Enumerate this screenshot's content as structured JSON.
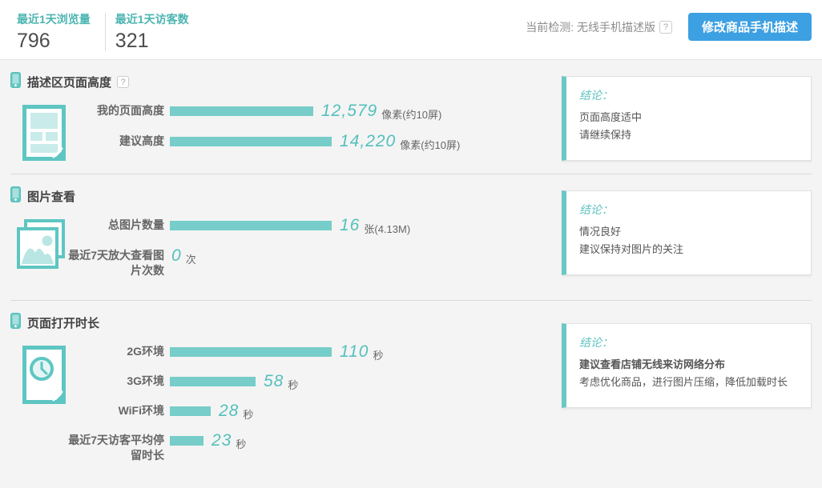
{
  "header": {
    "stats": [
      {
        "label": "最近1天浏览量",
        "value": "796"
      },
      {
        "label": "最近1天访客数",
        "value": "321"
      }
    ],
    "current_check": "当前检测: 无线手机描述版",
    "help_badge": "?",
    "action_button": "修改商品手机描述"
  },
  "sections": [
    {
      "title": "描述区页面高度",
      "bar_max": 14220,
      "rows": [
        {
          "label": "我的页面高度",
          "value": 12579,
          "value_display": "12,579",
          "unit": "像素(约10屏)",
          "has_bar": true
        },
        {
          "label": "建议高度",
          "value": 14220,
          "value_display": "14,220",
          "unit": "像素(约10屏)",
          "has_bar": true
        }
      ],
      "conclusion": {
        "title": "结论：",
        "lines": [
          "页面高度适中",
          "请继续保持"
        ]
      }
    },
    {
      "title": "图片查看",
      "bar_max": 16,
      "rows": [
        {
          "label": "总图片数量",
          "value": 16,
          "value_display": "16",
          "unit": "张(4.13M)",
          "has_bar": true
        },
        {
          "label": "最近7天放大查看图片次数",
          "value": 0,
          "value_display": "0",
          "unit": "次",
          "has_bar": false
        }
      ],
      "conclusion": {
        "title": "结论：",
        "lines": [
          "情况良好",
          "建议保持对图片的关注"
        ]
      }
    },
    {
      "title": "页面打开时长",
      "bar_max": 110,
      "rows": [
        {
          "label": "2G环境",
          "value": 110,
          "value_display": "110",
          "unit": "秒",
          "has_bar": true
        },
        {
          "label": "3G环境",
          "value": 58,
          "value_display": "58",
          "unit": "秒",
          "has_bar": true
        },
        {
          "label": "WiFi环境",
          "value": 28,
          "value_display": "28",
          "unit": "秒",
          "has_bar": true
        },
        {
          "label": "最近7天访客平均停留时长",
          "value": 23,
          "value_display": "23",
          "unit": "秒",
          "has_bar": true
        }
      ],
      "conclusion": {
        "title": "结论：",
        "lines": [
          "建议查看店铺无线来访网络分布",
          "考虑优化商品，进行图片压缩，降低加载时长"
        ]
      }
    }
  ],
  "chart_data": [
    {
      "type": "bar",
      "title": "描述区页面高度",
      "categories": [
        "我的页面高度",
        "建议高度"
      ],
      "values": [
        12579,
        14220
      ],
      "unit": "像素",
      "xlim": [
        0,
        14220
      ]
    },
    {
      "type": "bar",
      "title": "图片查看",
      "categories": [
        "总图片数量",
        "最近7天放大查看图片次数"
      ],
      "values": [
        16,
        0
      ],
      "unit": "张 / 次",
      "xlim": [
        0,
        16
      ]
    },
    {
      "type": "bar",
      "title": "页面打开时长",
      "categories": [
        "2G环境",
        "3G环境",
        "WiFi环境",
        "最近7天访客平均停留时长"
      ],
      "values": [
        110,
        58,
        28,
        23
      ],
      "unit": "秒",
      "xlim": [
        0,
        110
      ]
    }
  ],
  "colors": {
    "accent_teal": "#5ec6c2",
    "bar_teal": "#76cdc9",
    "value_teal": "#54c0bc",
    "stat_label_teal": "#4cb5b1",
    "button_blue": "#3da0e2",
    "background_gray": "#f4f4f4"
  }
}
